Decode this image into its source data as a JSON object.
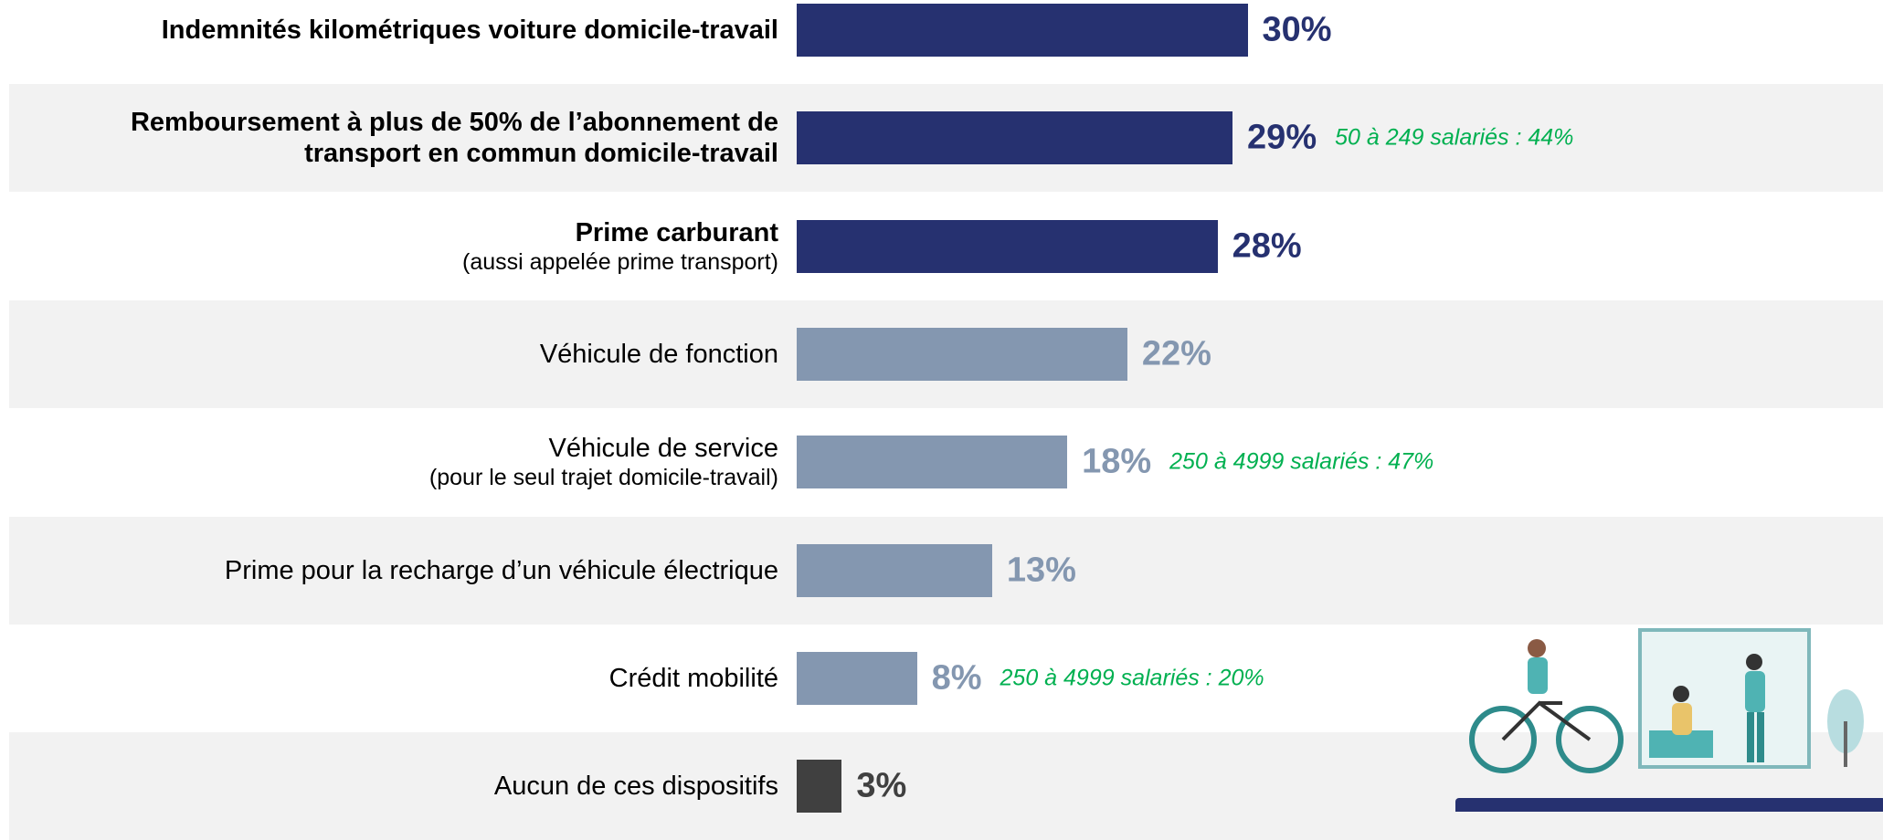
{
  "chart_data": {
    "type": "bar",
    "categories": [
      "Indemnités kilométriques voiture domicile-travail",
      "Remboursement à plus de 50% de l’abonnement de transport en commun domicile-travail",
      "Prime carburant",
      "Véhicule de fonction",
      "Véhicule de service",
      "Prime pour la recharge d’un véhicule électrique",
      "Crédit mobilité",
      "Aucun de ces dispositifs"
    ],
    "category_notes": [
      null,
      null,
      "(aussi appelée prime transport)",
      null,
      "(pour le seul trajet domicile-travail)",
      null,
      null,
      null
    ],
    "values": [
      30,
      29,
      28,
      22,
      18,
      13,
      8,
      3
    ],
    "value_labels": [
      "30%",
      "29%",
      "28%",
      "22%",
      "18%",
      "13%",
      "8%",
      "3%"
    ],
    "colors": [
      "#263170",
      "#263170",
      "#263170",
      "#8497b0",
      "#8497b0",
      "#8497b0",
      "#8497b0",
      "#404040"
    ],
    "bold": [
      true,
      true,
      true,
      false,
      false,
      false,
      false,
      false
    ],
    "annotations": [
      null,
      "50 à 249 salariés : 44%",
      null,
      null,
      "250 à 4999 salariés : 47%",
      null,
      "250 à 4999 salariés : 20%",
      null
    ],
    "annotation_color": "#00b050"
  }
}
